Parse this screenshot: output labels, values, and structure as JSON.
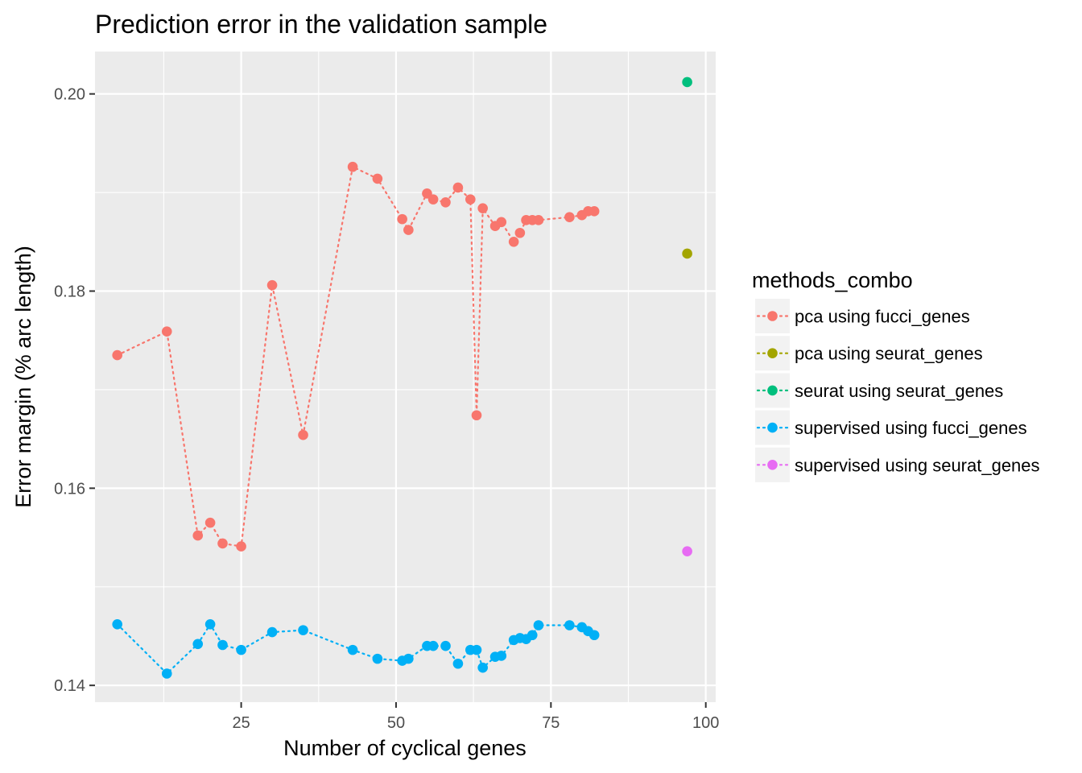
{
  "chart_data": {
    "type": "scatter",
    "title": "Prediction error in the validation sample",
    "xlabel": "Number of cyclical genes",
    "ylabel": "Error margin (% arc length)",
    "xlim": [
      1.4,
      101.6
    ],
    "ylim": [
      0.1383,
      0.2043
    ],
    "x_ticks": [
      25,
      50,
      75,
      100
    ],
    "x_tick_labels": [
      "25",
      "50",
      "75",
      "100"
    ],
    "x_minor_ticks": [
      12.5,
      37.5,
      62.5,
      87.5
    ],
    "y_ticks": [
      0.14,
      0.16,
      0.18,
      0.2
    ],
    "y_tick_labels": [
      "0.14",
      "0.16",
      "0.18",
      "0.20"
    ],
    "y_minor_ticks": [
      0.15,
      0.17,
      0.19
    ],
    "grid": true,
    "legend": {
      "title": "methods_combo",
      "position": "right"
    },
    "series": [
      {
        "name": "pca using fucci_genes",
        "color": "#F8766D",
        "line": "dotted",
        "x": [
          5,
          13,
          18,
          20,
          22,
          25,
          30,
          35,
          43,
          47,
          51,
          52,
          55,
          56,
          58,
          60,
          62,
          63,
          64,
          66,
          67,
          69,
          70,
          71,
          72,
          73,
          78,
          80,
          81,
          82
        ],
        "y": [
          0.1735,
          0.1759,
          0.1552,
          0.1565,
          0.1544,
          0.1541,
          0.1806,
          0.1654,
          0.1926,
          0.1914,
          0.1873,
          0.1862,
          0.1899,
          0.1893,
          0.189,
          0.1905,
          0.1893,
          0.1674,
          0.1884,
          0.1866,
          0.187,
          0.185,
          0.1859,
          0.1872,
          0.1872,
          0.1872,
          0.1875,
          0.1877,
          0.1881,
          0.1881
        ]
      },
      {
        "name": "pca using seurat_genes",
        "color": "#A3A500",
        "line": "dotted",
        "x": [
          97
        ],
        "y": [
          0.1838
        ]
      },
      {
        "name": "seurat using seurat_genes",
        "color": "#00BF7D",
        "line": "dotted",
        "x": [
          97
        ],
        "y": [
          0.2012
        ]
      },
      {
        "name": "supervised using fucci_genes",
        "color": "#00B0F6",
        "line": "dotted",
        "x": [
          5,
          13,
          18,
          20,
          22,
          25,
          30,
          35,
          43,
          47,
          51,
          52,
          55,
          56,
          58,
          60,
          62,
          63,
          64,
          66,
          67,
          69,
          70,
          71,
          72,
          73,
          78,
          80,
          81,
          82
        ],
        "y": [
          0.1462,
          0.1412,
          0.1442,
          0.1462,
          0.1441,
          0.1436,
          0.1454,
          0.1456,
          0.1436,
          0.1427,
          0.1425,
          0.1427,
          0.144,
          0.144,
          0.144,
          0.1422,
          0.1436,
          0.1436,
          0.1418,
          0.1429,
          0.143,
          0.1446,
          0.1448,
          0.1447,
          0.1451,
          0.1461,
          0.1461,
          0.1459,
          0.1455,
          0.1451
        ]
      },
      {
        "name": "supervised using seurat_genes",
        "color": "#E76BF3",
        "line": "dotted",
        "x": [
          97
        ],
        "y": [
          0.1536
        ]
      }
    ]
  }
}
